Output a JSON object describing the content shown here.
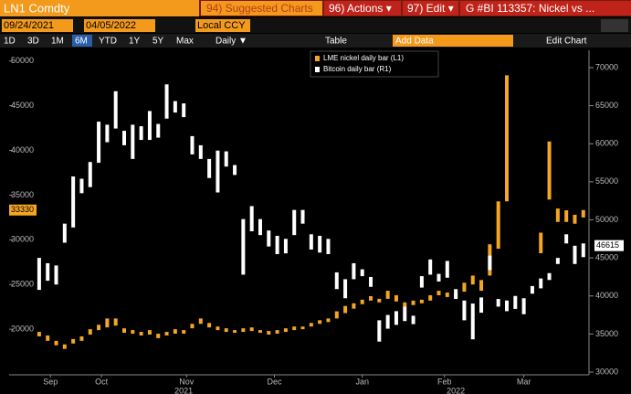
{
  "toolbar": {
    "ticker": "LN1 Comdty",
    "suggested": "94) Suggested Charts",
    "actions": "96) Actions ▾",
    "edit": "97) Edit ▾",
    "chart_title": "G #BI 113357: Nickel vs ...",
    "start_date": "09/24/2021",
    "end_date": "04/05/2022",
    "currency": "Local CCY",
    "ranges": [
      "1D",
      "3D",
      "1M",
      "6M",
      "YTD",
      "1Y",
      "5Y",
      "Max"
    ],
    "selected_range": "6M",
    "frequency": "Daily ▼",
    "table": "Table",
    "add_data": "Add Data",
    "edit_chart": "Edit Chart"
  },
  "chart_data": {
    "type": "bar",
    "grid": false,
    "x": [
      0,
      3,
      6,
      9,
      12,
      15,
      18,
      21,
      24,
      27,
      30,
      33,
      36,
      39,
      42,
      45,
      48,
      51,
      54,
      57,
      60,
      63,
      66,
      69,
      72,
      75,
      78,
      81,
      84,
      87,
      90,
      93,
      96,
      99,
      102,
      105,
      108,
      111,
      114,
      117,
      120,
      123,
      126,
      129,
      132,
      135,
      138,
      141,
      144,
      147,
      150,
      153,
      156,
      159,
      162,
      165,
      168,
      171,
      174,
      177,
      180,
      183,
      186,
      189,
      192
    ],
    "xlim": [
      -10.6,
      194
    ],
    "xticks": [
      {
        "value": 4,
        "label": "Sep"
      },
      {
        "value": 22,
        "label": "Oct"
      },
      {
        "value": 52,
        "label": "Nov"
      },
      {
        "value": 83,
        "label": "Dec"
      },
      {
        "value": 114,
        "label": "Jan"
      },
      {
        "value": 143,
        "label": "Feb"
      },
      {
        "value": 171,
        "label": "Mar"
      }
    ],
    "year_ticks": [
      {
        "value": 51,
        "label": "2021"
      },
      {
        "value": 147,
        "label": "2022"
      }
    ],
    "ylim": [
      14900,
      51200
    ],
    "yticks": [
      20000,
      25000,
      30000,
      35000,
      40000,
      45000,
      50000
    ],
    "y2lim": [
      29640,
      72280
    ],
    "y2ticks": [
      30000,
      35000,
      40000,
      45000,
      50000,
      55000,
      60000,
      65000,
      70000
    ],
    "series": [
      {
        "name": "LME nickel daily bar (L1)",
        "color": "#f5a623",
        "axis": "y",
        "last_price": 33330,
        "high": [
          19700,
          19300,
          18700,
          18300,
          18900,
          19200,
          20000,
          20500,
          21200,
          21200,
          20100,
          19900,
          19700,
          19900,
          19500,
          19700,
          20000,
          19900,
          20600,
          21200,
          20700,
          20300,
          20100,
          19900,
          20100,
          20200,
          19900,
          19800,
          19900,
          20100,
          20300,
          20300,
          20700,
          21000,
          21200,
          22000,
          22600,
          22900,
          23300,
          23700,
          23400,
          24300,
          23800,
          23000,
          23200,
          23300,
          23800,
          24300,
          24100,
          24000,
          25200,
          26000,
          25500,
          29500,
          34300,
          48400,
          null,
          null,
          null,
          30800,
          41000,
          33500,
          33300,
          32800,
          33330
        ],
        "low": [
          19200,
          18700,
          18200,
          17800,
          18400,
          18700,
          19400,
          19900,
          20200,
          20400,
          19600,
          19500,
          19300,
          19400,
          19000,
          19300,
          19500,
          19500,
          20100,
          20600,
          20200,
          19900,
          19700,
          19600,
          19700,
          19800,
          19600,
          19400,
          19500,
          19700,
          19900,
          20000,
          20300,
          20600,
          20800,
          21200,
          21800,
          22300,
          22800,
          23200,
          23000,
          23400,
          23100,
          22500,
          22700,
          22900,
          23200,
          23800,
          23600,
          23500,
          24200,
          25000,
          24300,
          26000,
          29000,
          34300,
          null,
          null,
          null,
          28500,
          34500,
          32000,
          32000,
          31800,
          32500
        ]
      },
      {
        "name": "Bitcoin daily bar (R1)",
        "color": "#ffffff",
        "axis": "y2",
        "last_price": 46615,
        "high": [
          45000,
          44300,
          44000,
          49500,
          55700,
          55400,
          57600,
          62900,
          62500,
          66900,
          61700,
          62500,
          62300,
          64300,
          62600,
          67800,
          65600,
          65300,
          61000,
          59800,
          58000,
          59100,
          59000,
          57200,
          50100,
          51800,
          50100,
          48600,
          47900,
          47500,
          51300,
          51300,
          48100,
          47900,
          47500,
          43100,
          42200,
          44300,
          43500,
          42500,
          36800,
          37500,
          38000,
          38600,
          37400,
          42600,
          44800,
          42900,
          44600,
          40900,
          39400,
          39000,
          39800,
          45300,
          39600,
          39400,
          40000,
          39700,
          41300,
          42300,
          43000,
          45000,
          48100,
          46600,
          46900
        ],
        "low": [
          40800,
          42000,
          41500,
          47000,
          49000,
          53500,
          54300,
          57500,
          60200,
          62000,
          59800,
          58000,
          60500,
          60500,
          60800,
          63300,
          64100,
          63500,
          58600,
          58000,
          55500,
          53600,
          57000,
          55900,
          42800,
          48500,
          48000,
          46500,
          45500,
          45600,
          48000,
          49500,
          46100,
          45700,
          45500,
          40900,
          39700,
          42200,
          42600,
          41200,
          34000,
          35700,
          36200,
          36700,
          36300,
          41100,
          42800,
          41900,
          42400,
          39600,
          36800,
          34300,
          37800,
          43400,
          38600,
          38000,
          38300,
          37600,
          40300,
          41000,
          42100,
          44200,
          46900,
          44200,
          45100
        ]
      }
    ]
  }
}
